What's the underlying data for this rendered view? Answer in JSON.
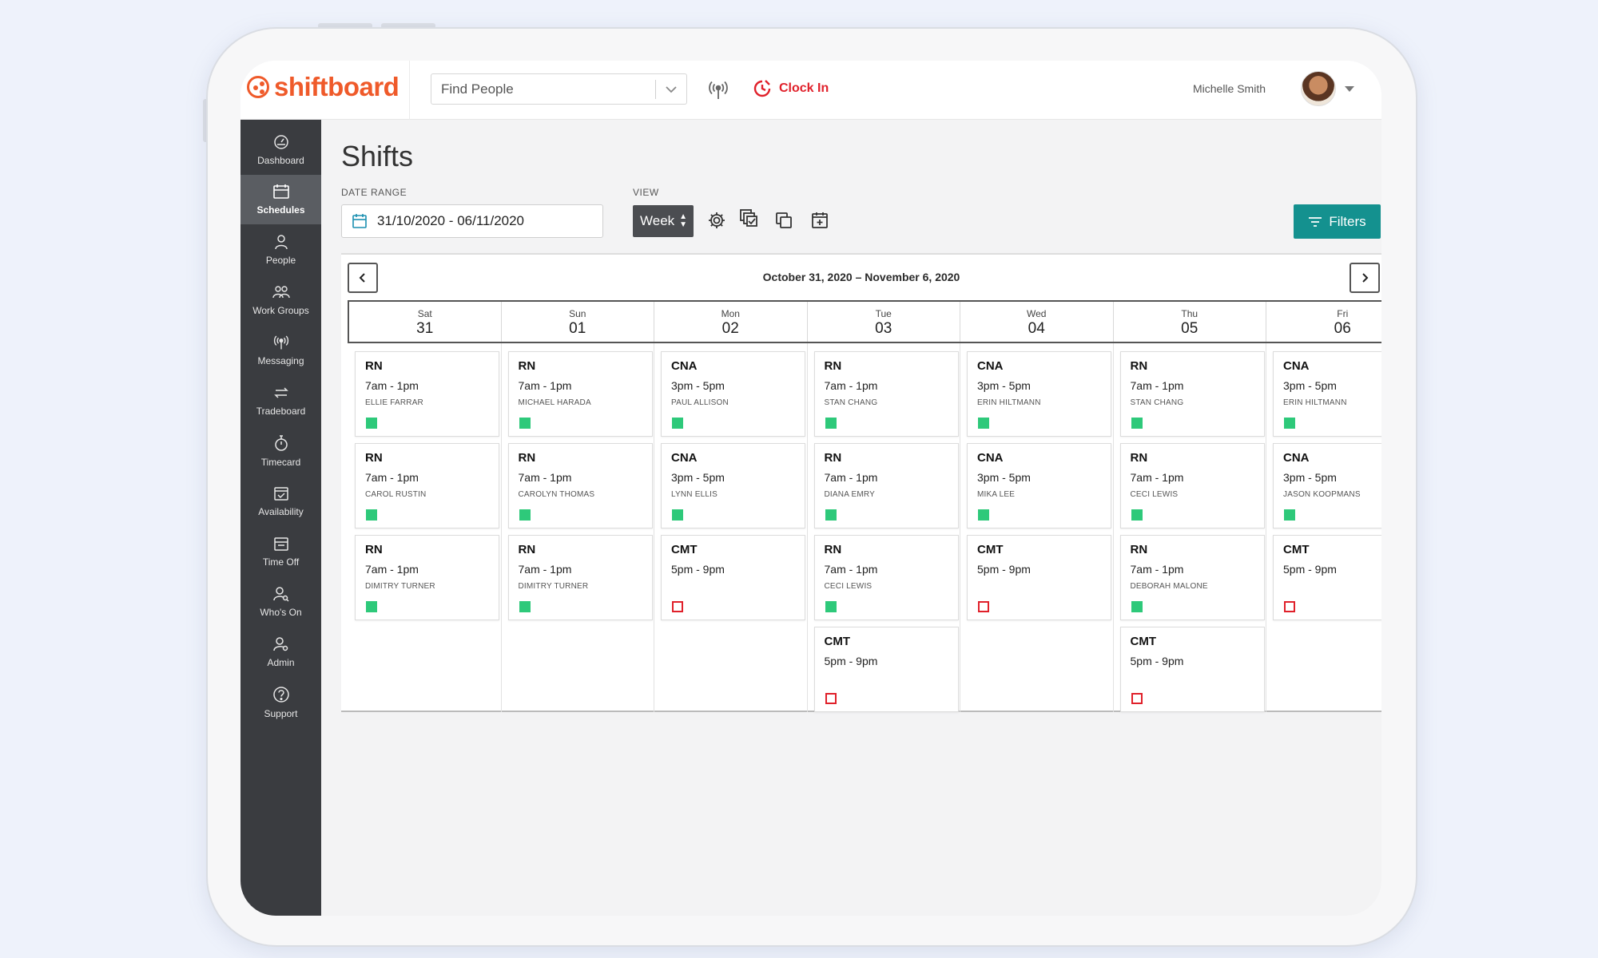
{
  "app": {
    "brand": "shiftboard",
    "brand_color": "#ef5a2a",
    "accent_teal": "#14918f",
    "open_color": "#e0202a",
    "filled_color": "#2ec97a"
  },
  "header": {
    "find_placeholder": "Find People",
    "clock_in_label": "Clock In",
    "user_name": "Michelle Smith"
  },
  "sidebar": {
    "items": [
      {
        "label": "Dashboard",
        "icon": "dashboard-icon"
      },
      {
        "label": "Schedules",
        "icon": "calendar-icon",
        "active": true
      },
      {
        "label": "People",
        "icon": "person-icon"
      },
      {
        "label": "Work Groups",
        "icon": "group-icon"
      },
      {
        "label": "Messaging",
        "icon": "broadcast-icon"
      },
      {
        "label": "Tradeboard",
        "icon": "swap-icon"
      },
      {
        "label": "Timecard",
        "icon": "stopwatch-icon"
      },
      {
        "label": "Availability",
        "icon": "calendar-check-icon"
      },
      {
        "label": "Time Off",
        "icon": "calendar-icon"
      },
      {
        "label": "Who's On",
        "icon": "person-search-icon"
      },
      {
        "label": "Admin",
        "icon": "person-gear-icon"
      },
      {
        "label": "Support",
        "icon": "help-icon"
      }
    ]
  },
  "page": {
    "title": "Shifts",
    "date_range_label": "DATE RANGE",
    "date_range_value": "31/10/2020 - 06/11/2020",
    "view_label": "VIEW",
    "view_value": "Week",
    "filters_label": "Filters"
  },
  "calendar": {
    "range_title": "October 31, 2020 – November 6, 2020",
    "days": [
      {
        "name": "Sat",
        "date": "31",
        "shifts": [
          {
            "role": "RN",
            "time": "7am - 1pm",
            "person": "ELLIE FARRAR",
            "status": "filled"
          },
          {
            "role": "RN",
            "time": "7am - 1pm",
            "person": "CAROL RUSTIN",
            "status": "filled"
          },
          {
            "role": "RN",
            "time": "7am - 1pm",
            "person": "DIMITRY TURNER",
            "status": "filled"
          }
        ]
      },
      {
        "name": "Sun",
        "date": "01",
        "shifts": [
          {
            "role": "RN",
            "time": "7am - 1pm",
            "person": "MICHAEL HARADA",
            "status": "filled"
          },
          {
            "role": "RN",
            "time": "7am - 1pm",
            "person": "CAROLYN THOMAS",
            "status": "filled"
          },
          {
            "role": "RN",
            "time": "7am - 1pm",
            "person": "DIMITRY TURNER",
            "status": "filled"
          }
        ]
      },
      {
        "name": "Mon",
        "date": "02",
        "shifts": [
          {
            "role": "CNA",
            "time": "3pm - 5pm",
            "person": "PAUL ALLISON",
            "status": "filled"
          },
          {
            "role": "CNA",
            "time": "3pm - 5pm",
            "person": "LYNN ELLIS",
            "status": "filled"
          },
          {
            "role": "CMT",
            "time": "5pm - 9pm",
            "person": "",
            "status": "open"
          }
        ]
      },
      {
        "name": "Tue",
        "date": "03",
        "shifts": [
          {
            "role": "RN",
            "time": "7am - 1pm",
            "person": "STAN CHANG",
            "status": "filled"
          },
          {
            "role": "RN",
            "time": "7am - 1pm",
            "person": "DIANA EMRY",
            "status": "filled"
          },
          {
            "role": "RN",
            "time": "7am - 1pm",
            "person": "CECI LEWIS",
            "status": "filled"
          },
          {
            "role": "CMT",
            "time": "5pm - 9pm",
            "person": "",
            "status": "open"
          }
        ]
      },
      {
        "name": "Wed",
        "date": "04",
        "shifts": [
          {
            "role": "CNA",
            "time": "3pm - 5pm",
            "person": "ERIN HILTMANN",
            "status": "filled"
          },
          {
            "role": "CNA",
            "time": "3pm - 5pm",
            "person": "MIKA LEE",
            "status": "filled"
          },
          {
            "role": "CMT",
            "time": "5pm - 9pm",
            "person": "",
            "status": "open"
          }
        ]
      },
      {
        "name": "Thu",
        "date": "05",
        "shifts": [
          {
            "role": "RN",
            "time": "7am - 1pm",
            "person": "STAN CHANG",
            "status": "filled"
          },
          {
            "role": "RN",
            "time": "7am - 1pm",
            "person": "CECI LEWIS",
            "status": "filled"
          },
          {
            "role": "RN",
            "time": "7am - 1pm",
            "person": "DEBORAH MALONE",
            "status": "filled"
          },
          {
            "role": "CMT",
            "time": "5pm - 9pm",
            "person": "",
            "status": "open"
          }
        ]
      },
      {
        "name": "Fri",
        "date": "06",
        "shifts": [
          {
            "role": "CNA",
            "time": "3pm - 5pm",
            "person": "ERIN HILTMANN",
            "status": "filled"
          },
          {
            "role": "CNA",
            "time": "3pm - 5pm",
            "person": "JASON KOOPMANS",
            "status": "filled"
          },
          {
            "role": "CMT",
            "time": "5pm - 9pm",
            "person": "",
            "status": "open"
          }
        ]
      }
    ]
  }
}
